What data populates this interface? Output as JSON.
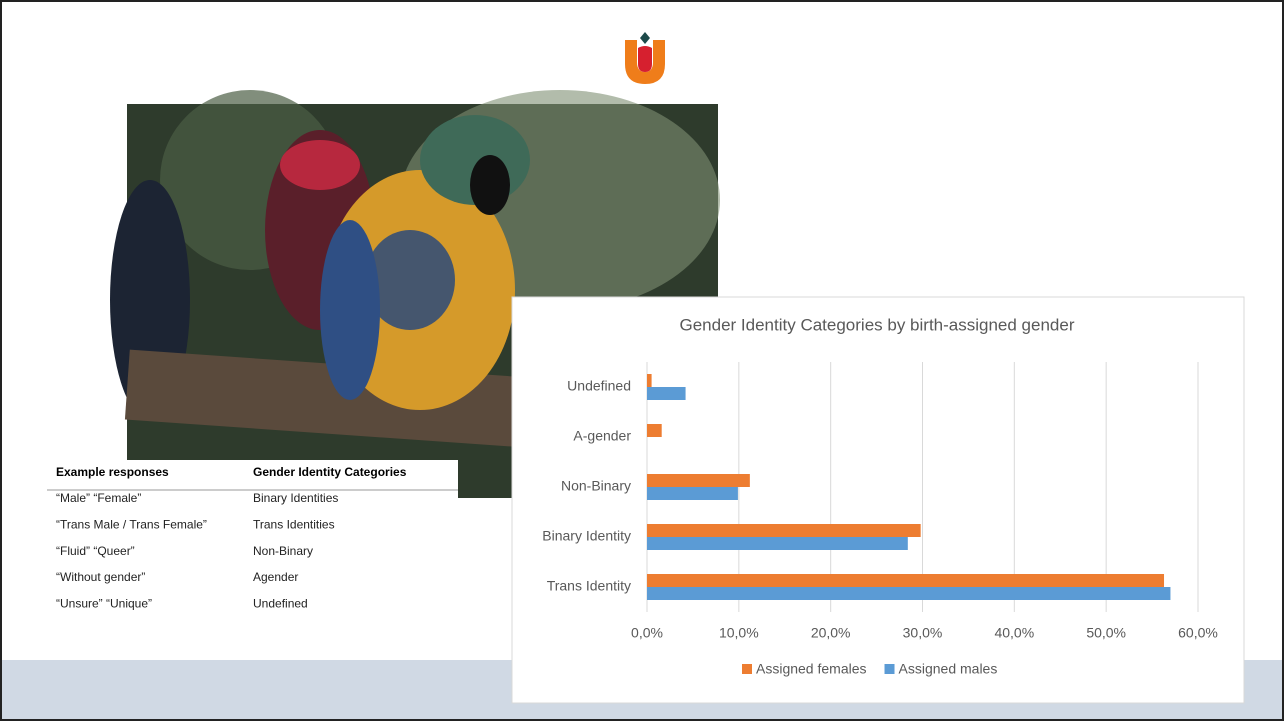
{
  "chart_data": {
    "type": "bar",
    "orientation": "horizontal",
    "title": "Gender Identity Categories by birth-assigned gender",
    "categories": [
      "Undefined",
      "A-gender",
      "Non-Binary",
      "Binary Identity",
      "Trans Identity"
    ],
    "series": [
      {
        "name": "Assigned females",
        "color": "#ed7d31",
        "values": [
          0.5,
          1.6,
          11.2,
          29.8,
          56.3
        ]
      },
      {
        "name": "Assigned males",
        "color": "#5b9bd5",
        "values": [
          4.2,
          0,
          9.9,
          28.4,
          57.0
        ]
      }
    ],
    "xlim": [
      0,
      60
    ],
    "xticks": [
      {
        "value": 0,
        "label": "0,0%"
      },
      {
        "value": 10,
        "label": "10,0%"
      },
      {
        "value": 20,
        "label": "20,0%"
      },
      {
        "value": 30,
        "label": "30,0%"
      },
      {
        "value": 40,
        "label": "40,0%"
      },
      {
        "value": 50,
        "label": "50,0%"
      },
      {
        "value": 60,
        "label": "60,0%"
      }
    ],
    "grid": true,
    "legend": "bottom"
  },
  "table": {
    "header": [
      "Example responses",
      "Gender Identity Categories"
    ],
    "rows": [
      [
        "“Male”  “Female”",
        "Binary Identities"
      ],
      [
        "“Trans Male / Trans Female”",
        "Trans Identities"
      ],
      [
        "“Fluid”  “Queer”",
        "Non-Binary"
      ],
      [
        "“Without gender”",
        "Agender"
      ],
      [
        "“Unsure”  “Unique”",
        "Undefined"
      ]
    ]
  }
}
